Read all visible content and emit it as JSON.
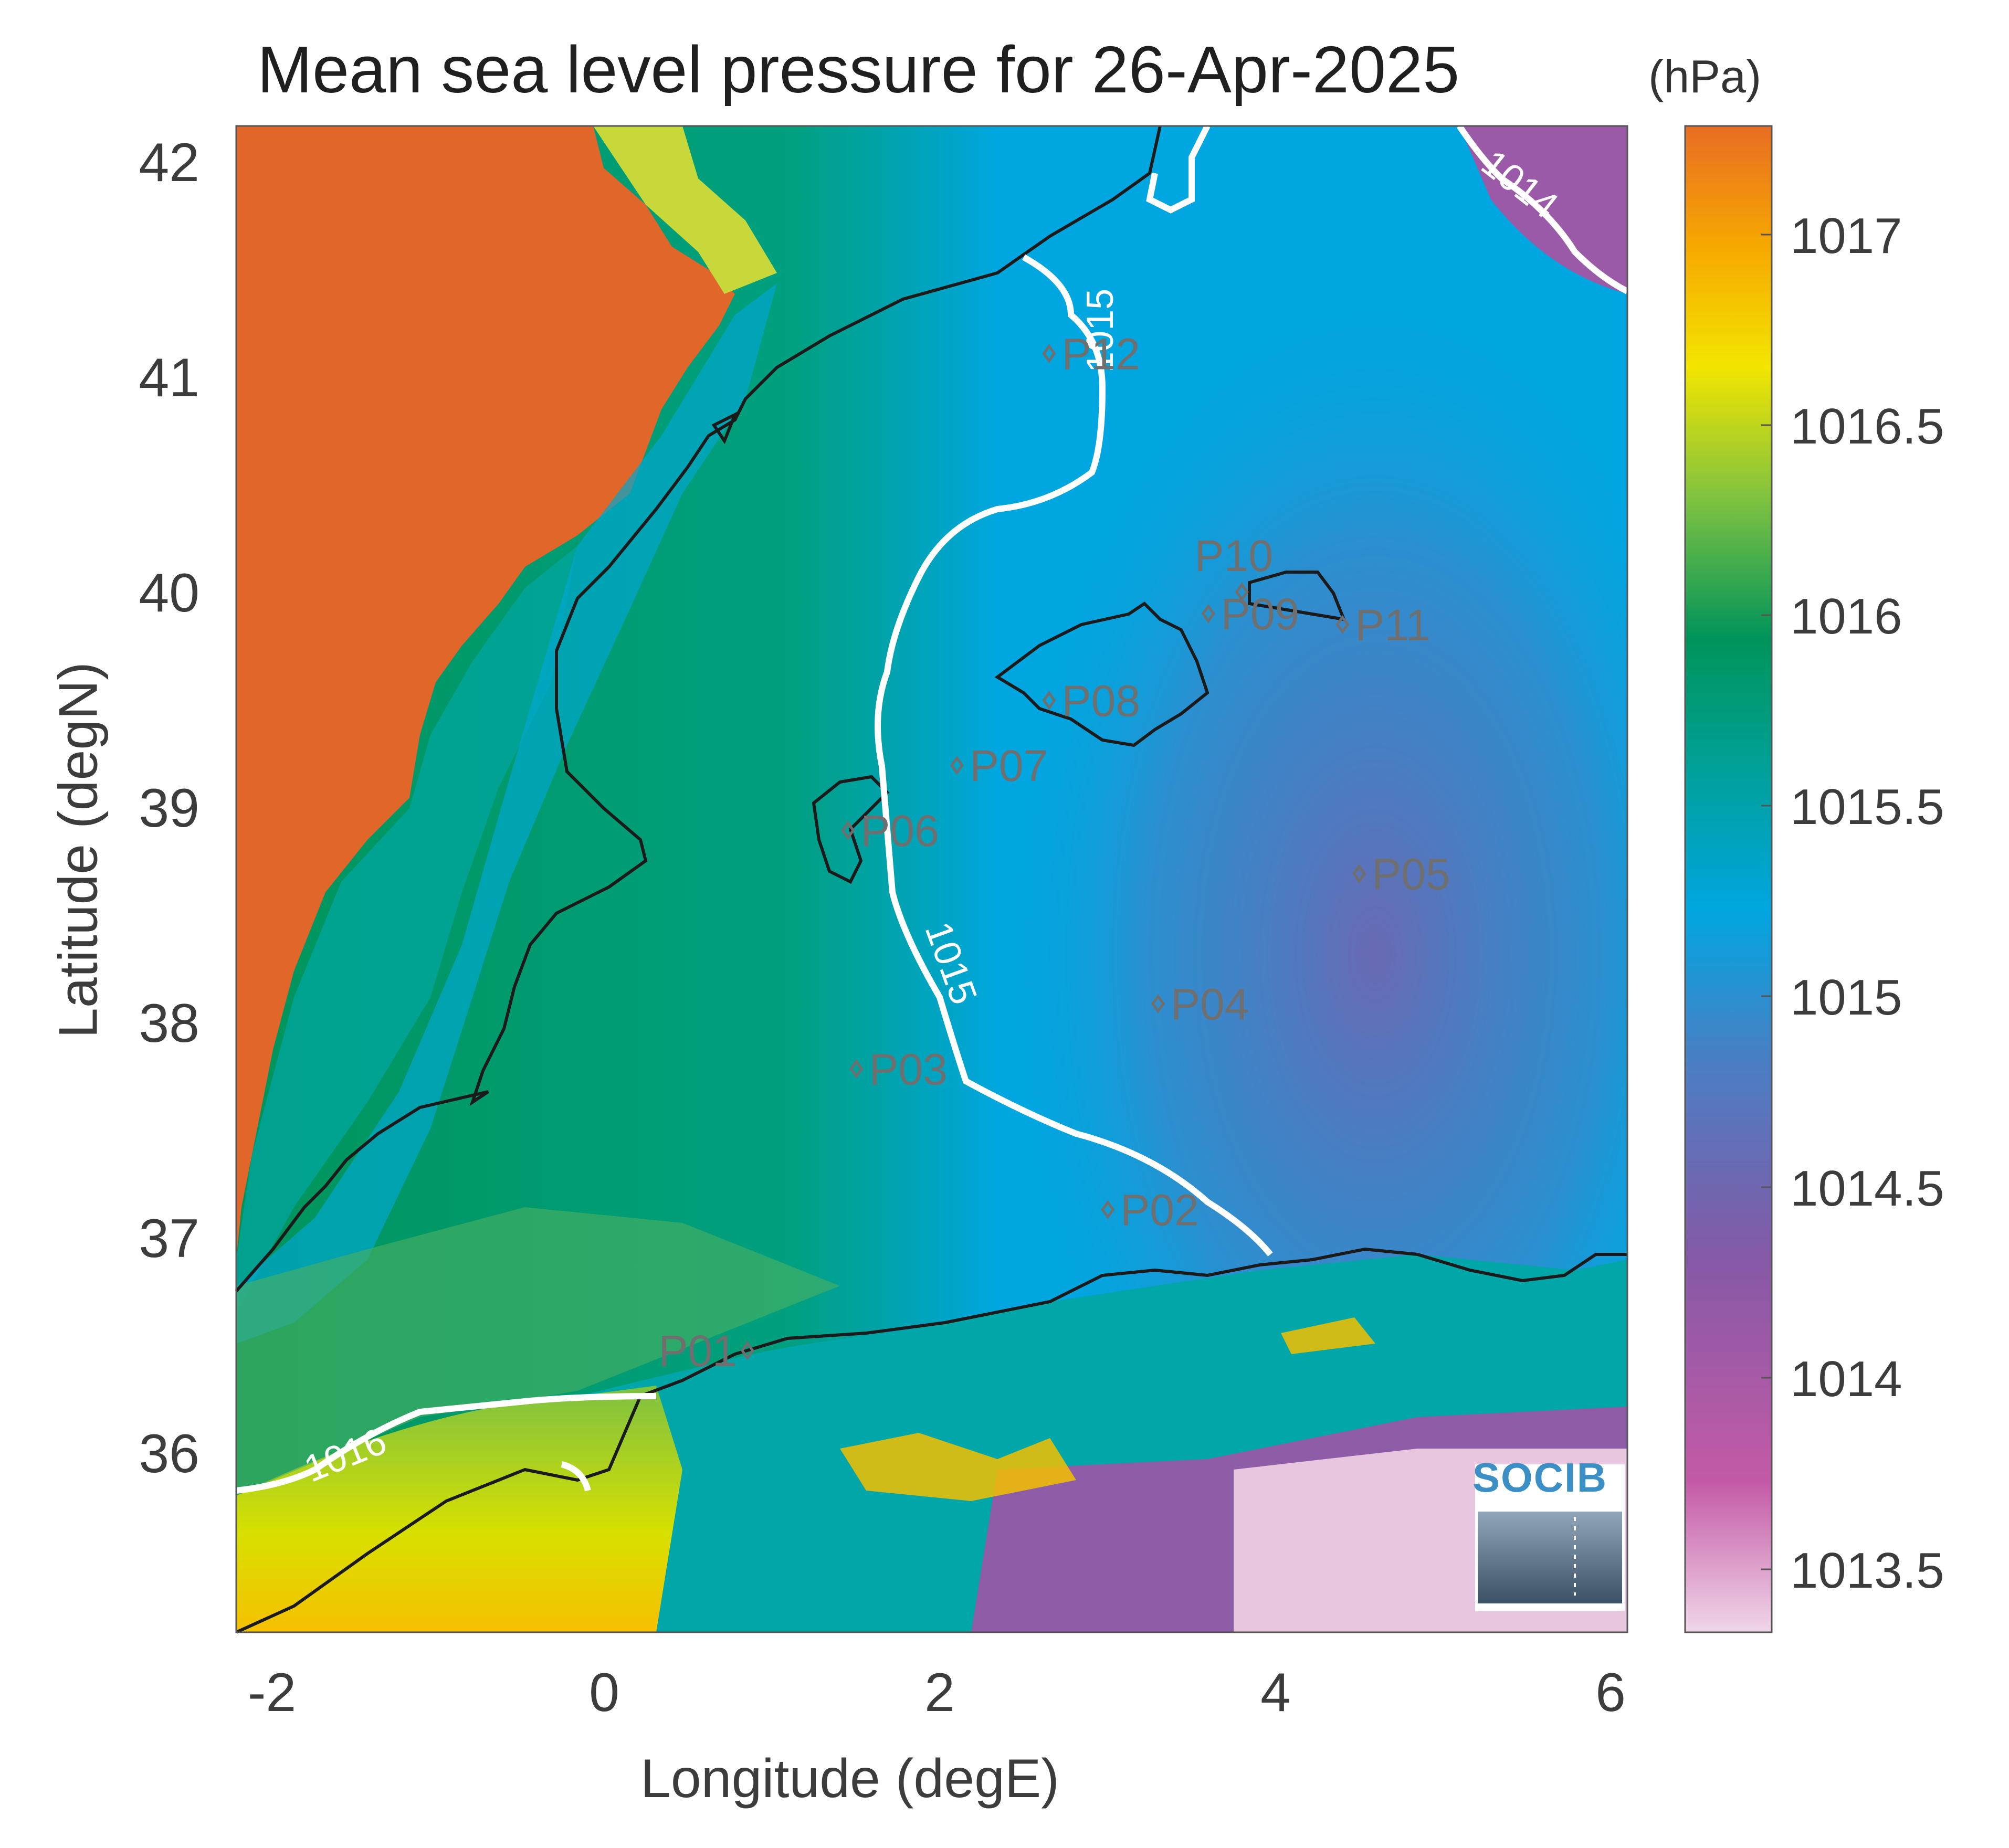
{
  "title": "Mean sea level pressure for 26-Apr-2025",
  "colorbar_unit": "(hPa)",
  "x_axis": {
    "label": "Longitude (degE)",
    "ticks": [
      "-2",
      "0",
      "2",
      "4",
      "6"
    ],
    "range": [
      -2.2,
      6.1
    ]
  },
  "y_axis": {
    "label": "Latitude (degN)",
    "ticks": [
      "36",
      "37",
      "38",
      "39",
      "40",
      "41",
      "42"
    ],
    "range": [
      35.2,
      42.15
    ]
  },
  "colorbar": {
    "ticks": [
      "1013.5",
      "1014",
      "1014.5",
      "1015",
      "1015.5",
      "1016",
      "1016.5",
      "1017"
    ],
    "range": [
      1013.35,
      1017.3
    ],
    "colors": [
      "#e8c6df",
      "#c45aa6",
      "#8459a6",
      "#4a7fc4",
      "#00a6e0",
      "#00a093",
      "#00945a",
      "#7cc142",
      "#f3e500",
      "#f6a800",
      "#e86d24"
    ]
  },
  "contours": [
    {
      "label": "1014"
    },
    {
      "label": "1015"
    },
    {
      "label": "1015"
    },
    {
      "label": "1016"
    }
  ],
  "stations": [
    {
      "name": "P01",
      "lon": 0.85,
      "lat": 36.5
    },
    {
      "name": "P02",
      "lon": 3.0,
      "lat": 37.15
    },
    {
      "name": "P03",
      "lon": 1.5,
      "lat": 37.8
    },
    {
      "name": "P04",
      "lon": 3.3,
      "lat": 38.1
    },
    {
      "name": "P05",
      "lon": 4.5,
      "lat": 38.7
    },
    {
      "name": "P06",
      "lon": 1.45,
      "lat": 38.9
    },
    {
      "name": "P07",
      "lon": 2.1,
      "lat": 39.2
    },
    {
      "name": "P08",
      "lon": 2.65,
      "lat": 39.5
    },
    {
      "name": "P09",
      "lon": 3.6,
      "lat": 39.9
    },
    {
      "name": "P10",
      "lon": 3.8,
      "lat": 40.0
    },
    {
      "name": "P11",
      "lon": 4.4,
      "lat": 39.85
    },
    {
      "name": "P12",
      "lon": 2.65,
      "lat": 41.1
    }
  ],
  "logo": {
    "text": "SOCIB"
  }
}
